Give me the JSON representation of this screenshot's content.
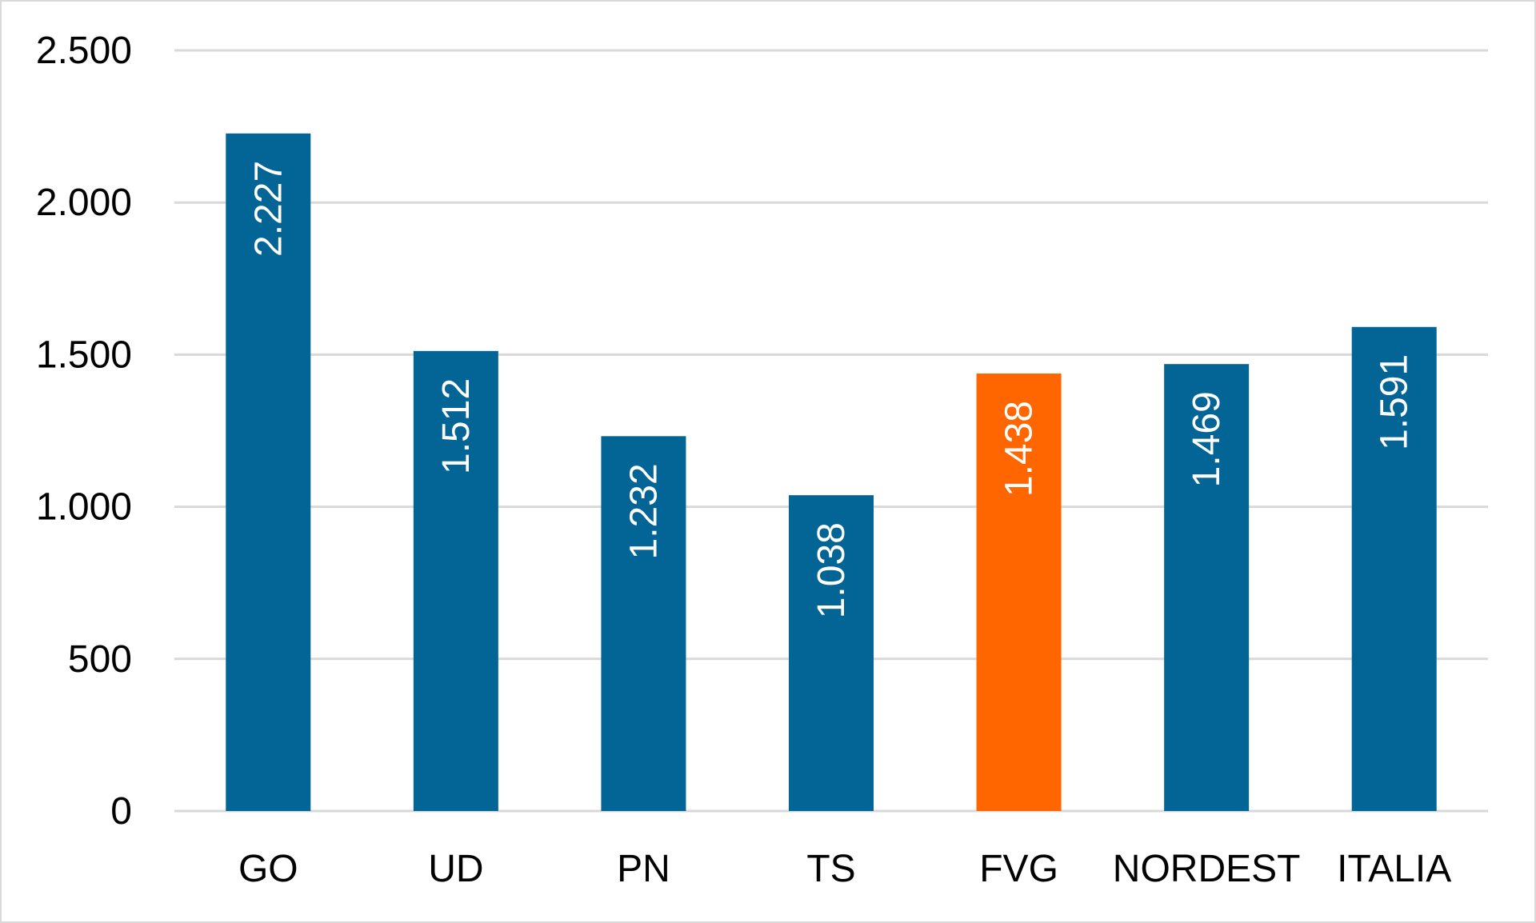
{
  "chart_data": {
    "type": "bar",
    "categories": [
      "GO",
      "UD",
      "PN",
      "TS",
      "FVG",
      "NORDEST",
      "ITALIA"
    ],
    "values": [
      2227,
      1512,
      1232,
      1038,
      1438,
      1469,
      1591
    ],
    "data_labels": [
      "2.227",
      "1.512",
      "1.232",
      "1.038",
      "1.438",
      "1.469",
      "1.591"
    ],
    "y_ticks": [
      0,
      500,
      1000,
      1500,
      2000,
      2500
    ],
    "y_tick_labels": [
      "0",
      "500",
      "1.000",
      "1.500",
      "2.000",
      "2.500"
    ],
    "ylim": [
      0,
      2500
    ],
    "grid": true,
    "legend": "none",
    "title": "",
    "xlabel": "",
    "ylabel": "",
    "colors": {
      "default_bar": "#036595",
      "highlight_bar": "#ff6600",
      "highlight_category": "FVG",
      "gridline": "#d9d9d9",
      "data_label": "#ffffff"
    }
  }
}
